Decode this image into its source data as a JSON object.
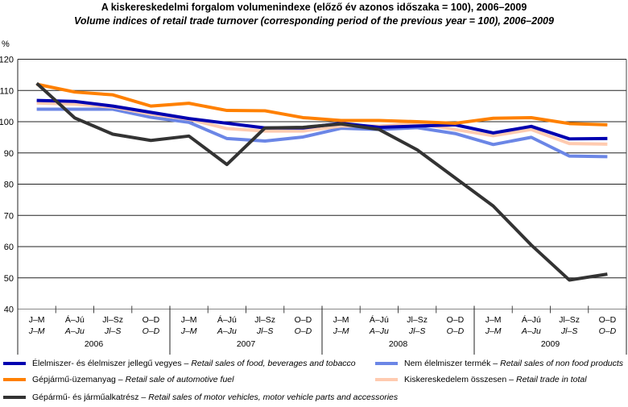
{
  "chart_data": {
    "type": "line",
    "title": "A kiskereskedelmi forgalom volumenindexe (előző év azonos időszaka = 100), 2006–2009",
    "subtitle": "Volume indices of retail trade turnover (corresponding period of the previous year = 100), 2006–2009",
    "ylabel": "%",
    "ylim": [
      40,
      120
    ],
    "yticks": [
      40,
      50,
      60,
      70,
      80,
      90,
      100,
      110,
      120
    ],
    "grid": true,
    "legend_placement": "bottom",
    "categories_hu": [
      "J–M",
      "Á–Jú",
      "Jl–Sz",
      "O–D",
      "J–M",
      "Á–Jú",
      "Jl–Sz",
      "O–D",
      "J–M",
      "Á–Jú",
      "Jl–Sz",
      "O–D",
      "J–M",
      "Á–Jú",
      "Jl–Sz",
      "O–D"
    ],
    "categories_en": [
      "J–M",
      "A–Ju",
      "Jl–S",
      "O–D",
      "J–M",
      "A–Ju",
      "Jl–S",
      "O–D",
      "J–M",
      "A–Ju",
      "Jl–S",
      "O–D",
      "J–M",
      "A–Ju",
      "Jl–S",
      "O–D"
    ],
    "years": [
      "2006",
      "2007",
      "2008",
      "2009"
    ],
    "series": [
      {
        "name_hu": "Élelmiszer- és élelmiszer jellegű vegyes",
        "name_en": "Retail sales of food, beverages and tobacco",
        "color": "#0000b0",
        "values": [
          106.8,
          106.5,
          105,
          103,
          101,
          99.5,
          98,
          98,
          99.5,
          98.2,
          98.6,
          99,
          96.4,
          98.5,
          94.5,
          94.6
        ]
      },
      {
        "name_hu": "Nem élelmiszer termék",
        "name_en": "Retail sales of non food products",
        "color": "#6b86e6",
        "values": [
          104,
          104,
          104,
          101.4,
          99.8,
          94.6,
          93.8,
          95.1,
          97.9,
          97.5,
          98.1,
          96.2,
          92.7,
          95,
          89,
          88.8
        ]
      },
      {
        "name_hu": "Gépjármű-üzemanyag",
        "name_en": "Retail sale of automotive fuel",
        "color": "#ff8000",
        "values": [
          112,
          109.5,
          108.6,
          105,
          105.9,
          103.6,
          103.5,
          101.3,
          100.4,
          100.4,
          100,
          99.5,
          101.1,
          101.3,
          99.4,
          99
        ]
      },
      {
        "name_hu": "Kiskereskedelem összesen",
        "name_en": "Retail trade in total",
        "color": "#ffcbb0",
        "values": [
          106,
          105.6,
          104.7,
          102.4,
          100.8,
          97.8,
          97,
          97,
          98.6,
          98.6,
          99.5,
          97.5,
          95.5,
          97.5,
          93,
          92.8
        ]
      },
      {
        "name_hu": "Gépármű- és járműalkatrész",
        "name_en": "Retail sales of motor vehicles, motor vehicle parts and accessories",
        "color": "#333333",
        "values": [
          112.3,
          101.2,
          96,
          94,
          95.4,
          86.3,
          98,
          98.2,
          99.3,
          97.5,
          91,
          82,
          73,
          60.5,
          49.3,
          51.2
        ]
      }
    ]
  }
}
